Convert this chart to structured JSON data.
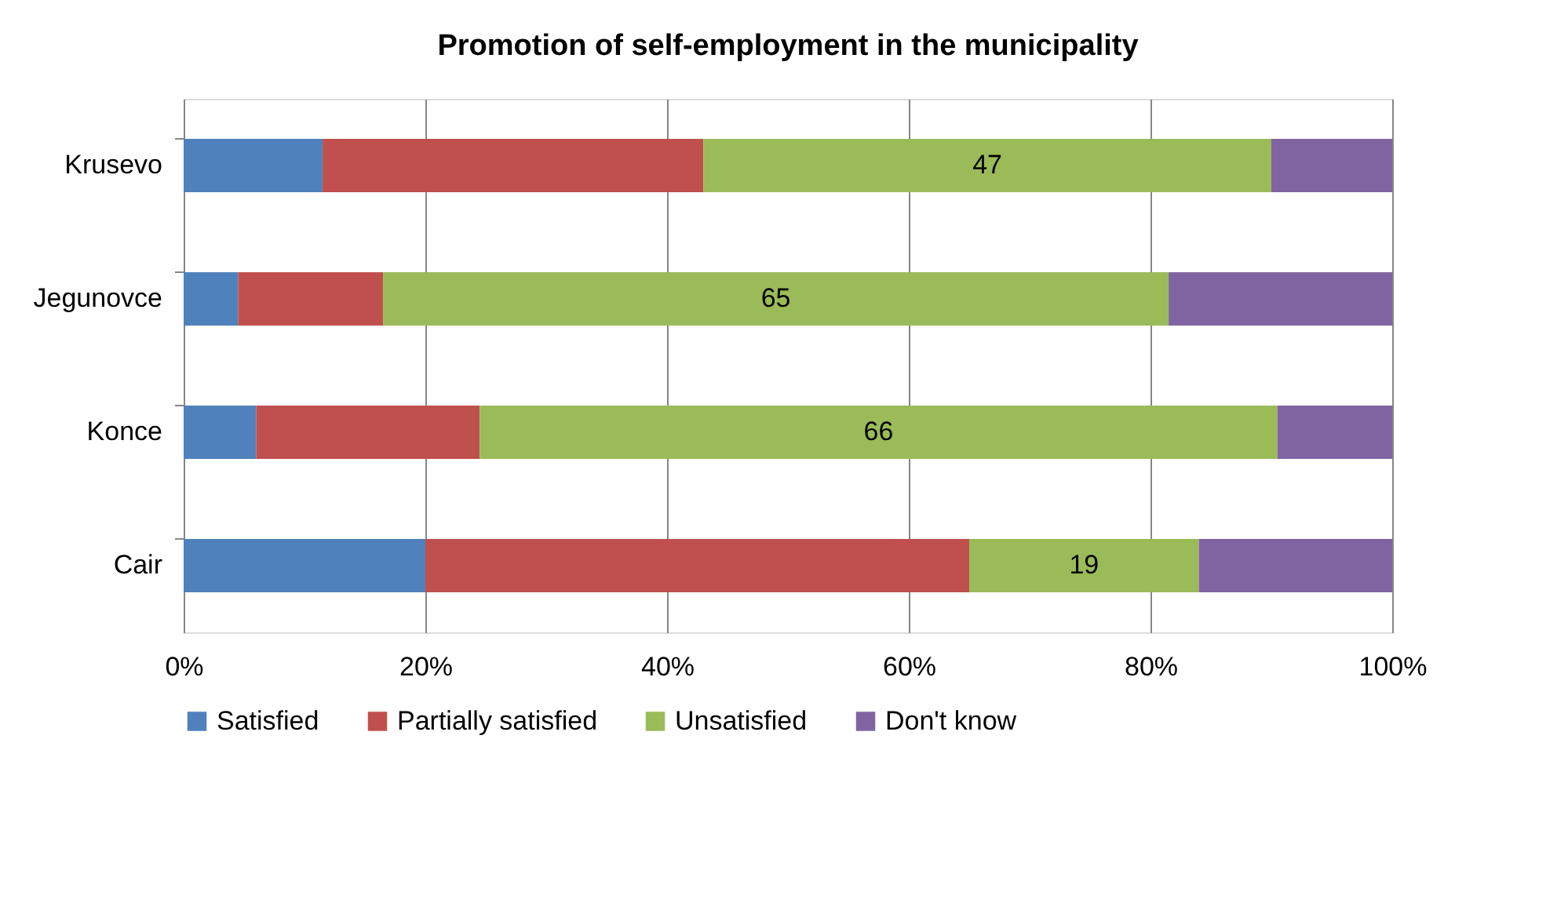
{
  "chart_data": {
    "type": "bar",
    "orientation": "horizontal",
    "stacked": true,
    "title": "Promotion of self-employment in the municipality",
    "categories": [
      "Krusevo",
      "Jegunovce",
      "Konce",
      "Cair"
    ],
    "series": [
      {
        "name": "Satisfied",
        "color": "#4f81bd",
        "values": [
          11.5,
          4.5,
          6,
          20
        ]
      },
      {
        "name": "Partially satisfied",
        "color": "#c0504d",
        "values": [
          31.5,
          12,
          18.5,
          45
        ]
      },
      {
        "name": "Unsatisfied",
        "color": "#9bbb59",
        "values": [
          47,
          65,
          66,
          19
        ],
        "value_labels": [
          "47",
          "65",
          "66",
          "19"
        ]
      },
      {
        "name": "Don't know",
        "color": "#8064a2",
        "values": [
          10,
          18.5,
          9.5,
          16
        ]
      }
    ],
    "xlim": [
      0,
      100
    ],
    "xticks": [
      {
        "value": 0,
        "label": "0%"
      },
      {
        "value": 20,
        "label": "20%"
      },
      {
        "value": 40,
        "label": "40%"
      },
      {
        "value": 60,
        "label": "60%"
      },
      {
        "value": 80,
        "label": "80%"
      },
      {
        "value": 100,
        "label": "100%"
      }
    ],
    "grid": "x",
    "legend": "bottom"
  }
}
